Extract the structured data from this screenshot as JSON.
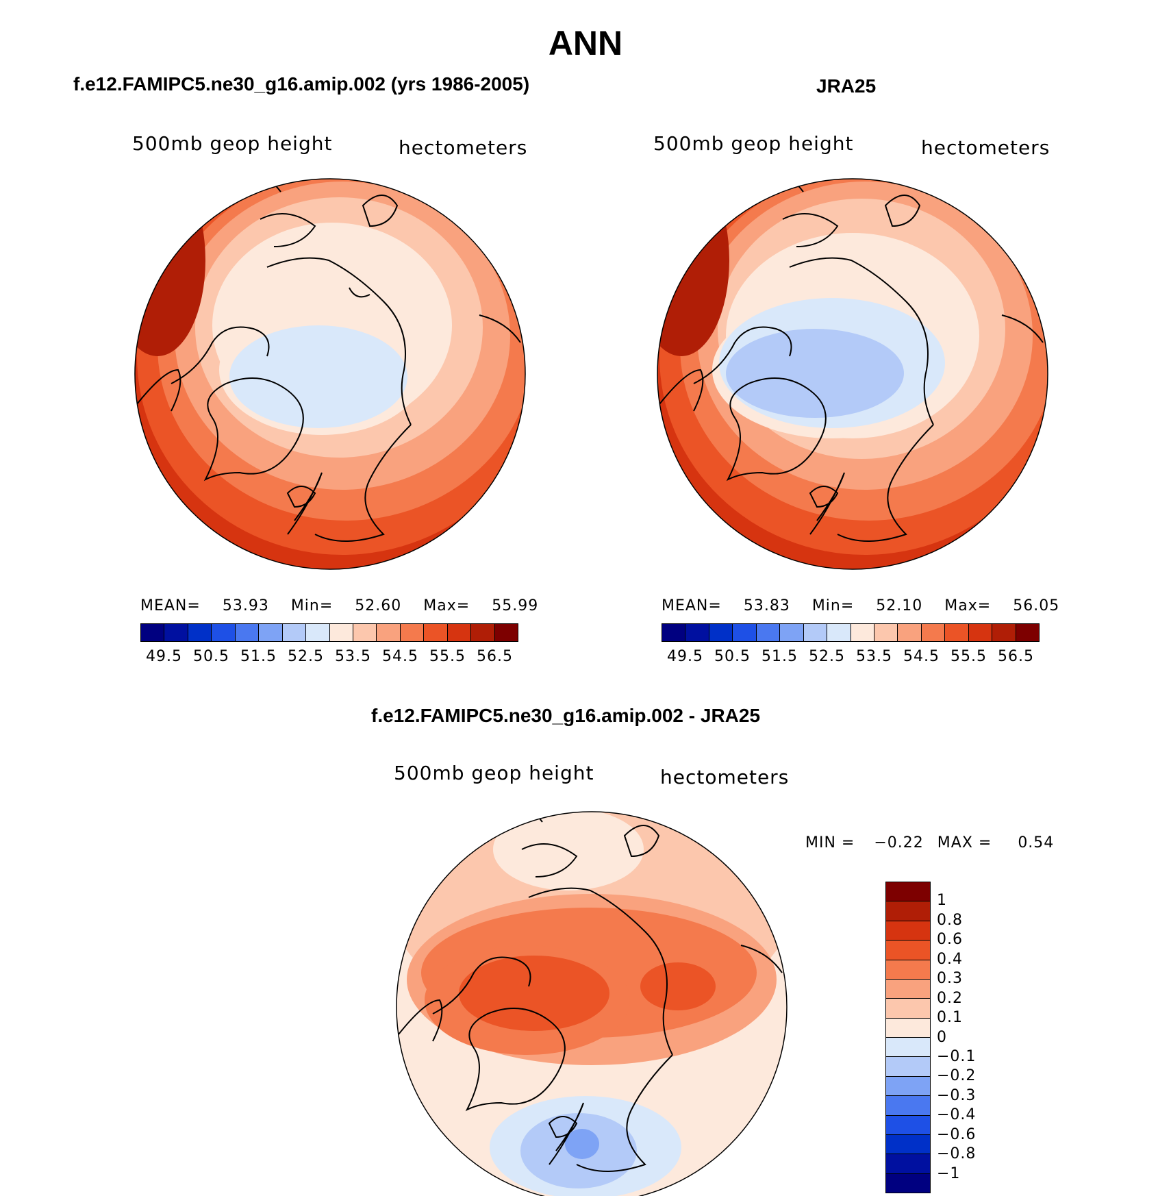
{
  "title": "ANN",
  "palette_levels": [
    "#000080",
    "#0010a0",
    "#0030c8",
    "#1e50e6",
    "#4a78f0",
    "#7ea3f5",
    "#b3caf8",
    "#d9e8fa",
    "#fde9dc",
    "#fcc7ad",
    "#f9a27e",
    "#f47a4d",
    "#eb5426",
    "#d63410",
    "#b01e06",
    "#7d0000"
  ],
  "diff_levels": [
    "#7d0000",
    "#b01e06",
    "#d63410",
    "#eb5426",
    "#f47a4d",
    "#f9a27e",
    "#fcc7ad",
    "#fde9dc",
    "#d9e8fa",
    "#b3caf8",
    "#7ea3f5",
    "#4a78f0",
    "#1e50e6",
    "#0030c8",
    "#0010a0",
    "#000080"
  ],
  "panels": [
    {
      "title": "f.e12.FAMIPC5.ne30_g16.amip.002 (yrs 1986-2005)",
      "left_label": "500mb  geop  height",
      "right_label": "hectometers",
      "stats": {
        "mean_label": "MEAN=",
        "mean": "53.93",
        "min_label": "Min=",
        "min": "52.60",
        "max_label": "Max=",
        "max": "55.99"
      },
      "ticks": [
        "49.5",
        "50.5",
        "51.5",
        "52.5",
        "53.5",
        "54.5",
        "55.5",
        "56.5"
      ]
    },
    {
      "title": "JRA25",
      "left_label": "500mb  geop  height",
      "right_label": "hectometers",
      "stats": {
        "mean_label": "MEAN=",
        "mean": "53.83",
        "min_label": "Min=",
        "min": "52.10",
        "max_label": "Max=",
        "max": "56.05"
      },
      "ticks": [
        "49.5",
        "50.5",
        "51.5",
        "52.5",
        "53.5",
        "54.5",
        "55.5",
        "56.5"
      ]
    }
  ],
  "diff_panel": {
    "title": "f.e12.FAMIPC5.ne30_g16.amip.002 - JRA25",
    "left_label": "500mb  geop  height",
    "right_label": "hectometers",
    "minmax": {
      "min_label": "MIN =",
      "min": "−0.22",
      "max_label": "MAX =",
      "max": "0.54"
    },
    "ticks": [
      "1",
      "0.8",
      "0.6",
      "0.4",
      "0.3",
      "0.2",
      "0.1",
      "0",
      "−0.1",
      "−0.2",
      "−0.3",
      "−0.4",
      "−0.6",
      "−0.8",
      "−1"
    ]
  }
}
